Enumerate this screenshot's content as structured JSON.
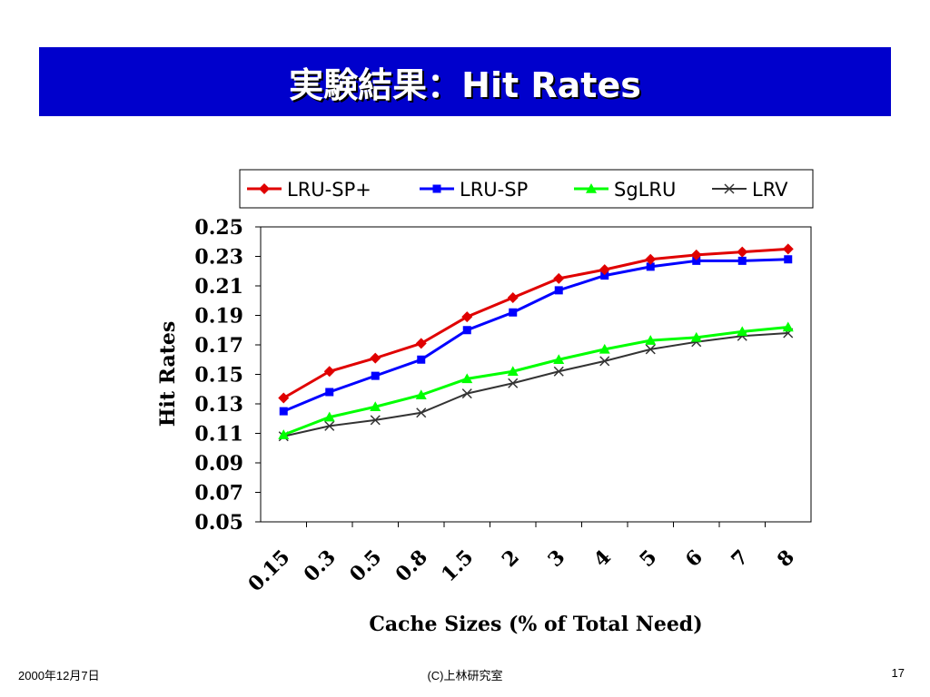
{
  "slide": {
    "title": "実験結果：Hit Rates",
    "footer_date": "2000年12月7日",
    "footer_org": "(C)上林研究室",
    "page_number": "17"
  },
  "colors": {
    "title_bar": "#0000cc",
    "title_text": "#ffffff"
  },
  "chart_data": {
    "type": "line",
    "title": "",
    "xlabel": "Cache Sizes (% of Total Need)",
    "ylabel": "Hit Rates",
    "categories": [
      "0.15",
      "0.3",
      "0.5",
      "0.8",
      "1.5",
      "2",
      "3",
      "4",
      "5",
      "6",
      "7",
      "8"
    ],
    "ylim": [
      0.05,
      0.25
    ],
    "yticks": [
      "0.25",
      "0.23",
      "0.21",
      "0.19",
      "0.17",
      "0.15",
      "0.13",
      "0.11",
      "0.09",
      "0.07",
      "0.05"
    ],
    "grid": false,
    "legend_position": "top",
    "series": [
      {
        "name": "LRU-SP+",
        "color": "#e00000",
        "marker": "diamond",
        "values": [
          0.134,
          0.152,
          0.161,
          0.171,
          0.189,
          0.202,
          0.215,
          0.221,
          0.228,
          0.231,
          0.233,
          0.235
        ]
      },
      {
        "name": "LRU-SP",
        "color": "#0000ff",
        "marker": "square",
        "values": [
          0.125,
          0.138,
          0.149,
          0.16,
          0.18,
          0.192,
          0.207,
          0.217,
          0.223,
          0.227,
          0.227,
          0.228
        ]
      },
      {
        "name": "SgLRU",
        "color": "#00ff00",
        "marker": "triangle",
        "values": [
          0.109,
          0.121,
          0.128,
          0.136,
          0.147,
          0.152,
          0.16,
          0.167,
          0.173,
          0.175,
          0.179,
          0.182
        ]
      },
      {
        "name": "LRV",
        "color": "#333333",
        "marker": "x",
        "values": [
          0.108,
          0.115,
          0.119,
          0.124,
          0.137,
          0.144,
          0.152,
          0.159,
          0.167,
          0.172,
          0.176,
          0.178
        ]
      }
    ]
  }
}
